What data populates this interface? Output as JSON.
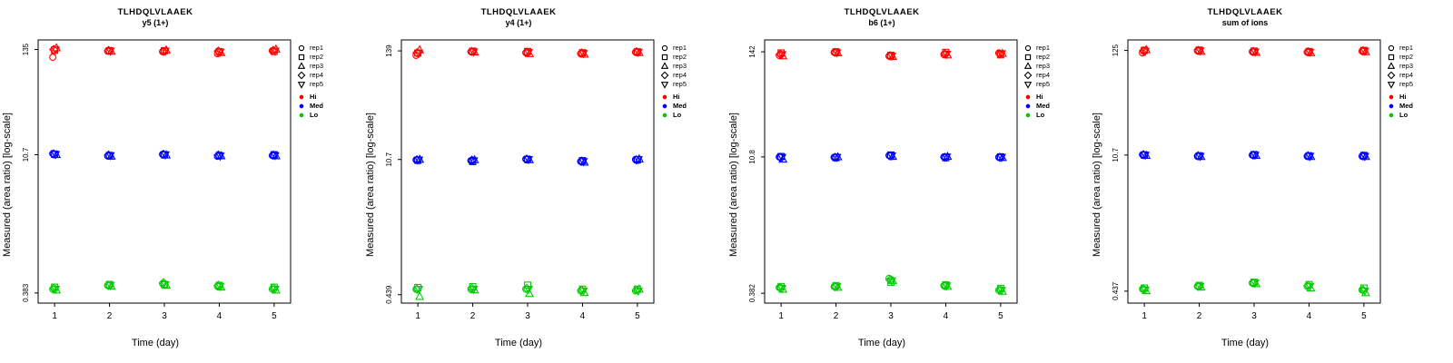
{
  "page": {
    "background": "#ffffff"
  },
  "reps": [
    {
      "label": "rep1",
      "shape": "circle"
    },
    {
      "label": "rep2",
      "shape": "square"
    },
    {
      "label": "rep3",
      "shape": "triangle-up"
    },
    {
      "label": "rep4",
      "shape": "diamond"
    },
    {
      "label": "rep5",
      "shape": "triangle-down"
    }
  ],
  "chart_data": [
    {
      "type": "scatter",
      "title": "TLHDQLVLAAEK",
      "subtitle": "y5 (1+)",
      "xlabel": "Time (day)",
      "ylabel": "Measured (area ratio) [log-scale]",
      "x_ticks": [
        1,
        2,
        3,
        4,
        5
      ],
      "xlim": [
        0.7,
        5.3
      ],
      "y_scale": "log",
      "y_ticks": [
        0.383,
        10.7,
        135
      ],
      "ylim": [
        0.3,
        170
      ],
      "grid": false,
      "legend_position": "right",
      "levels": [
        {
          "name": "Hi",
          "color": "#ff0000",
          "values": [
            [
              112,
              133,
              140,
              135,
              134
            ],
            [
              130,
              131,
              129,
              132,
              130
            ],
            [
              128,
              131,
              133,
              129,
              130
            ],
            [
              122,
              128,
              125,
              130,
              127
            ],
            [
              131,
              129,
              136,
              132,
              130
            ]
          ]
        },
        {
          "name": "Med",
          "color": "#0000ff",
          "values": [
            [
              11.0,
              10.8,
              10.7,
              10.9,
              10.8
            ],
            [
              10.4,
              10.5,
              10.3,
              10.6,
              10.5
            ],
            [
              10.8,
              10.7,
              10.6,
              10.8,
              10.7
            ],
            [
              10.3,
              10.5,
              10.4,
              10.6,
              10.4
            ],
            [
              10.5,
              10.7,
              10.4,
              10.6,
              10.5
            ]
          ]
        },
        {
          "name": "Lo",
          "color": "#00cc00",
          "values": [
            [
              0.42,
              0.44,
              0.41,
              0.43,
              0.42
            ],
            [
              0.46,
              0.47,
              0.45,
              0.46,
              0.46
            ],
            [
              0.48,
              0.47,
              0.46,
              0.49,
              0.47
            ],
            [
              0.45,
              0.46,
              0.44,
              0.46,
              0.45
            ],
            [
              0.42,
              0.44,
              0.41,
              0.43,
              0.42
            ]
          ]
        }
      ]
    },
    {
      "type": "scatter",
      "title": "TLHDQLVLAAEK",
      "subtitle": "y4 (1+)",
      "xlabel": "Time (day)",
      "ylabel": "Measured (area ratio) [log-scale]",
      "x_ticks": [
        1,
        2,
        3,
        4,
        5
      ],
      "xlim": [
        0.7,
        5.3
      ],
      "y_scale": "log",
      "y_ticks": [
        0.439,
        10.7,
        139
      ],
      "ylim": [
        0.36,
        180
      ],
      "grid": false,
      "legend_position": "right",
      "levels": [
        {
          "name": "Hi",
          "color": "#ff0000",
          "values": [
            [
              125,
              132,
              142,
              133,
              131
            ],
            [
              136,
              138,
              135,
              137,
              136
            ],
            [
              133,
              137,
              130,
              135,
              134
            ],
            [
              130,
              133,
              128,
              132,
              131
            ],
            [
              135,
              136,
              133,
              136,
              135
            ]
          ]
        },
        {
          "name": "Med",
          "color": "#0000ff",
          "values": [
            [
              10.6,
              10.5,
              10.7,
              10.6,
              10.6
            ],
            [
              10.4,
              10.2,
              10.6,
              10.5,
              10.4
            ],
            [
              10.8,
              10.7,
              10.6,
              10.8,
              10.7
            ],
            [
              10.2,
              10.4,
              10.0,
              10.3,
              10.2
            ],
            [
              10.7,
              10.6,
              10.8,
              10.6,
              10.7
            ]
          ]
        },
        {
          "name": "Lo",
          "color": "#00cc00",
          "values": [
            [
              0.5,
              0.52,
              0.42,
              0.5,
              0.5
            ],
            [
              0.5,
              0.53,
              0.49,
              0.51,
              0.5
            ],
            [
              0.5,
              0.55,
              0.45,
              0.51,
              0.5
            ],
            [
              0.48,
              0.5,
              0.46,
              0.49,
              0.48
            ],
            [
              0.48,
              0.5,
              0.5,
              0.49,
              0.48
            ]
          ]
        }
      ]
    },
    {
      "type": "scatter",
      "title": "TLHDQLVLAAEK",
      "subtitle": "b6 (1+)",
      "xlabel": "Time (day)",
      "ylabel": "Measured (area ratio) [log-scale]",
      "x_ticks": [
        1,
        2,
        3,
        4,
        5
      ],
      "xlim": [
        0.7,
        5.3
      ],
      "y_scale": "log",
      "y_ticks": [
        0.382,
        10.8,
        142
      ],
      "ylim": [
        0.3,
        190
      ],
      "grid": false,
      "legend_position": "right",
      "levels": [
        {
          "name": "Hi",
          "color": "#ff0000",
          "values": [
            [
              130,
              138,
              128,
              134,
              133
            ],
            [
              140,
              142,
              138,
              140,
              139
            ],
            [
              128,
              130,
              126,
              129,
              128
            ],
            [
              133,
              140,
              131,
              135,
              134
            ],
            [
              138,
              132,
              136,
              135,
              136
            ]
          ]
        },
        {
          "name": "Med",
          "color": "#0000ff",
          "values": [
            [
              10.8,
              10.9,
              10.2,
              10.7,
              10.7
            ],
            [
              10.7,
              10.6,
              10.8,
              10.7,
              10.7
            ],
            [
              11.2,
              11.3,
              10.9,
              11.1,
              11.1
            ],
            [
              10.8,
              10.6,
              10.9,
              10.7,
              10.8
            ],
            [
              10.7,
              10.8,
              10.6,
              10.7,
              10.7
            ]
          ]
        },
        {
          "name": "Lo",
          "color": "#00cc00",
          "values": [
            [
              0.44,
              0.45,
              0.42,
              0.44,
              0.43
            ],
            [
              0.45,
              0.46,
              0.44,
              0.45,
              0.45
            ],
            [
              0.55,
              0.5,
              0.52,
              0.53,
              0.52
            ],
            [
              0.46,
              0.47,
              0.45,
              0.46,
              0.46
            ],
            [
              0.41,
              0.43,
              0.4,
              0.42,
              0.41
            ]
          ]
        }
      ]
    },
    {
      "type": "scatter",
      "title": "TLHDQLVLAAEK",
      "subtitle": "sum of ions",
      "xlabel": "Time (day)",
      "ylabel": "Measured (area ratio) [log-scale]",
      "x_ticks": [
        1,
        2,
        3,
        4,
        5
      ],
      "xlim": [
        0.7,
        5.3
      ],
      "y_scale": "log",
      "y_ticks": [
        0.437,
        10.7,
        125
      ],
      "ylim": [
        0.33,
        160
      ],
      "grid": false,
      "legend_position": "right",
      "levels": [
        {
          "name": "Hi",
          "color": "#ff0000",
          "values": [
            [
              118,
              125,
              127,
              124,
              123
            ],
            [
              124,
              126,
              122,
              125,
              124
            ],
            [
              121,
              123,
              119,
              122,
              121
            ],
            [
              120,
              122,
              118,
              121,
              120
            ],
            [
              123,
              125,
              121,
              124,
              123
            ]
          ]
        },
        {
          "name": "Med",
          "color": "#0000ff",
          "values": [
            [
              10.8,
              10.7,
              10.6,
              10.8,
              10.7
            ],
            [
              10.4,
              10.5,
              10.3,
              10.5,
              10.4
            ],
            [
              10.7,
              10.8,
              10.6,
              10.7,
              10.7
            ],
            [
              10.4,
              10.5,
              10.3,
              10.5,
              10.4
            ],
            [
              10.4,
              10.6,
              10.3,
              10.5,
              10.4
            ]
          ]
        },
        {
          "name": "Lo",
          "color": "#00cc00",
          "values": [
            [
              0.46,
              0.47,
              0.44,
              0.46,
              0.45
            ],
            [
              0.49,
              0.5,
              0.48,
              0.49,
              0.49
            ],
            [
              0.53,
              0.54,
              0.52,
              0.53,
              0.53
            ],
            [
              0.49,
              0.51,
              0.47,
              0.5,
              0.49
            ],
            [
              0.45,
              0.47,
              0.42,
              0.45,
              0.44
            ]
          ]
        }
      ]
    }
  ]
}
